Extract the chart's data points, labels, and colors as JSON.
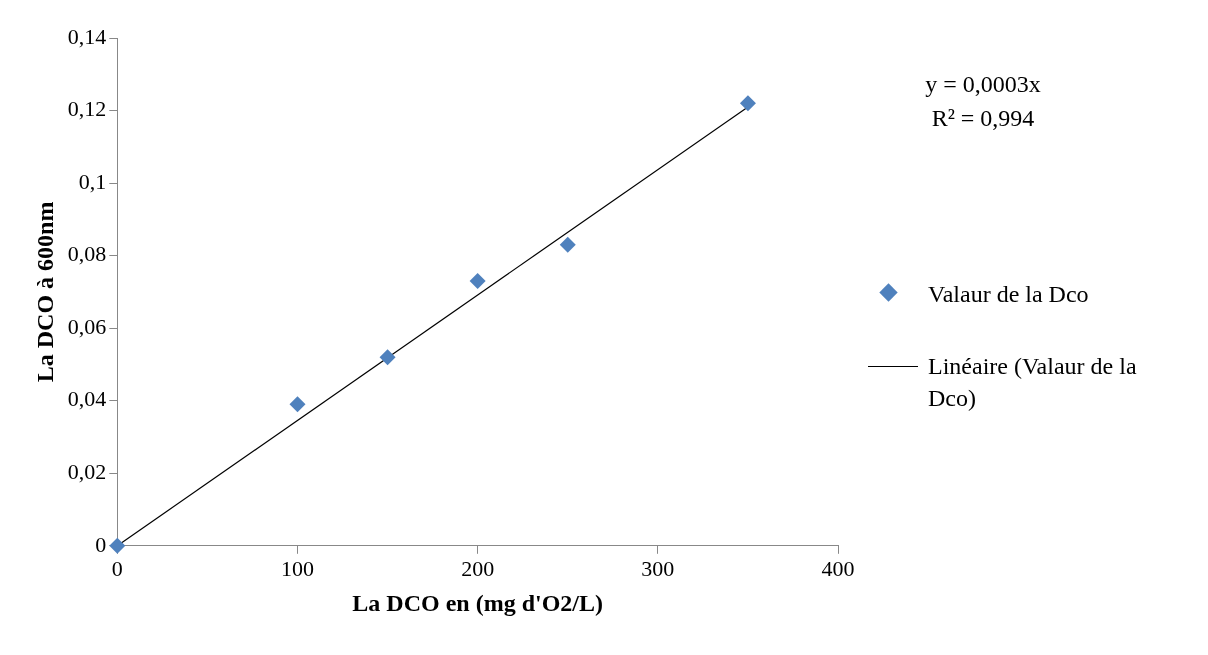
{
  "chart_data": {
    "type": "scatter",
    "xlabel": "La DCO en (mg d'O2/L)",
    "ylabel": "La DCO à 600nm",
    "xlim": [
      0,
      400
    ],
    "xticks": [
      0,
      100,
      200,
      300,
      400
    ],
    "ylim": [
      0,
      0.14
    ],
    "yticks": [
      0,
      {
        "value": 0.02,
        "label": "0,02"
      },
      {
        "value": 0.04,
        "label": "0,04"
      },
      {
        "value": 0.06,
        "label": "0,06"
      },
      {
        "value": 0.08,
        "label": "0,08"
      },
      {
        "value": 0.1,
        "label": "0,1"
      },
      {
        "value": 0.12,
        "label": "0,12"
      },
      {
        "value": 0.14,
        "label": "0,14"
      }
    ],
    "series": [
      {
        "name": "Valaur de la Dco",
        "color": "#4f81bd",
        "marker": "diamond",
        "x": [
          0,
          100,
          150,
          200,
          250,
          350
        ],
        "values": [
          0,
          0.039,
          0.052,
          0.073,
          0.083,
          0.122
        ]
      },
      {
        "name": "Linéaire (Valaur de la Dco)",
        "type": "line",
        "color": "#000000",
        "x": [
          0,
          350
        ],
        "values": [
          0,
          0.121
        ]
      }
    ],
    "annotations": [
      "y = 0,0003x",
      "R² = 0,994"
    ],
    "legend": "right",
    "grid": false
  }
}
